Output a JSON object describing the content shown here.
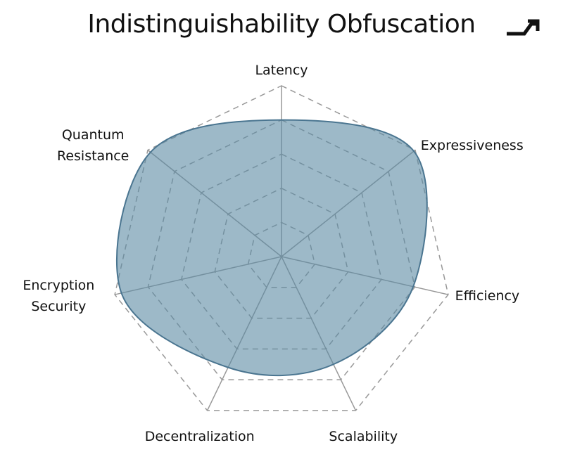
{
  "chart_data": {
    "type": "radar",
    "title": "Indistinguishability Obfuscation",
    "categories": [
      "Latency",
      "Expressiveness",
      "Efficiency",
      "Scalability",
      "Decentralization",
      "Encryption Security",
      "Quantum Resistance"
    ],
    "values": [
      80,
      99,
      79,
      70,
      72,
      96,
      98
    ],
    "color": "#5b8aa4",
    "line_color": "#4a7590",
    "rlim": [
      0,
      100
    ],
    "rticks": [
      20,
      40,
      60,
      80,
      100
    ],
    "grid": true
  }
}
